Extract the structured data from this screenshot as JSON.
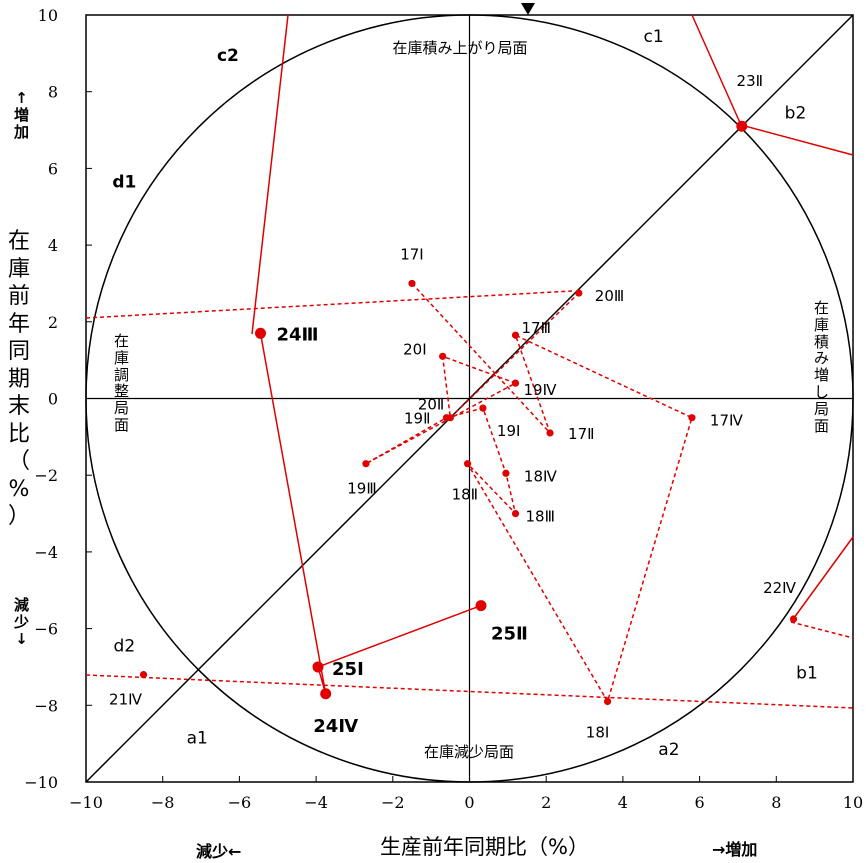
{
  "chart_data": {
    "type": "scatter",
    "title": "",
    "xlabel": "生産前年同期比（%）",
    "ylabel": "在庫前年同期末比（%）",
    "xlim": [
      -10,
      10
    ],
    "ylim": [
      -10,
      10
    ],
    "xticks": [
      "−10",
      "−8",
      "−6",
      "−4",
      "−2",
      "0",
      "2",
      "4",
      "6",
      "8",
      "10"
    ],
    "yticks": [
      "−10",
      "−8",
      "−6",
      "−4",
      "−2",
      "0",
      "2",
      "4",
      "6",
      "8",
      "10"
    ],
    "x_units": {
      "decrease": "減少←",
      "increase": "→増加"
    },
    "y_units": {
      "increase": "↑増加",
      "decrease": "減少↓"
    },
    "phases": {
      "top": "在庫積み上がり局面",
      "right": "在庫積み増し局面",
      "bottom": "在庫減少局面",
      "left": "在庫調整局面"
    },
    "region_labels": [
      {
        "text": "a1",
        "x": -7.1,
        "y": -9.0
      },
      {
        "text": "a2",
        "x": 5.2,
        "y": -9.3
      },
      {
        "text": "b1",
        "x": 8.8,
        "y": -7.3
      },
      {
        "text": "b2",
        "x": 8.5,
        "y": 7.3
      },
      {
        "text": "c1",
        "x": 4.8,
        "y": 9.3
      },
      {
        "text": "c2",
        "x": -6.3,
        "y": 8.8
      },
      {
        "text": "d1",
        "x": -9.0,
        "y": 5.5
      },
      {
        "text": "d2",
        "x": -9.0,
        "y": -6.6
      }
    ],
    "series": [
      {
        "style": "dashed",
        "points": [
          {
            "label": "17Ⅰ",
            "x": -1.5,
            "y": 3.0
          },
          {
            "label": "17Ⅱ",
            "x": 2.1,
            "y": -0.9
          },
          {
            "label": "17Ⅲ",
            "x": 1.2,
            "y": 1.65
          },
          {
            "label": "17Ⅳ",
            "x": 5.8,
            "y": -0.5
          },
          {
            "label": "18Ⅰ",
            "x": 3.6,
            "y": -7.9
          },
          {
            "label": "18Ⅱ",
            "x": -0.05,
            "y": -1.7
          },
          {
            "label": "18Ⅲ",
            "x": 1.2,
            "y": -3.0
          },
          {
            "label": "18Ⅳ",
            "x": 0.95,
            "y": -1.95
          },
          {
            "label": "19Ⅰ",
            "x": 0.35,
            "y": -0.25
          },
          {
            "label": "19Ⅱ",
            "x": -0.6,
            "y": -0.5
          },
          {
            "label": "19Ⅲ",
            "x": -2.7,
            "y": -1.7
          },
          {
            "label": "19Ⅳ",
            "x": 1.2,
            "y": 0.4
          },
          {
            "label": "20Ⅰ",
            "x": -0.7,
            "y": 1.1
          },
          {
            "label": "20Ⅱ",
            "x": -0.5,
            "y": -0.5
          },
          {
            "label": "20Ⅲ",
            "x": 2.85,
            "y": 2.75
          },
          {
            "label": "21Ⅳ",
            "x": -8.5,
            "y": -7.2
          },
          {
            "label": "22Ⅳ",
            "x": 8.45,
            "y": -5.75
          }
        ]
      },
      {
        "style": "solid",
        "points": [
          {
            "label": "23Ⅱ",
            "x": 7.1,
            "y": 7.1
          },
          {
            "label": "24Ⅲ",
            "x": -5.45,
            "y": 1.7
          },
          {
            "label": "24Ⅳ",
            "x": -3.75,
            "y": -7.7
          },
          {
            "label": "25Ⅰ",
            "x": -3.95,
            "y": -7.0
          },
          {
            "label": "25Ⅱ",
            "x": 0.3,
            "y": -5.4
          }
        ]
      }
    ]
  }
}
